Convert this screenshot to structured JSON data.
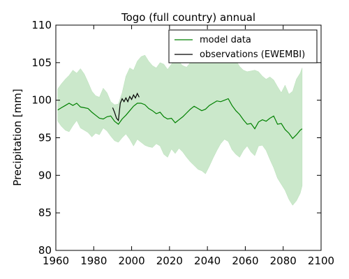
{
  "chart_data": {
    "type": "line",
    "title": "Togo (full country) annual",
    "xlabel": "",
    "ylabel": "Precipitation [mm]",
    "xlim": [
      1960,
      2100
    ],
    "ylim": [
      80,
      110
    ],
    "xticks": [
      1960,
      1980,
      2000,
      2020,
      2040,
      2060,
      2080,
      2100
    ],
    "yticks": [
      80,
      85,
      90,
      95,
      100,
      105,
      110
    ],
    "xtick_labels": [
      "1960",
      "1980",
      "2000",
      "2020",
      "2040",
      "2060",
      "2080",
      "2100"
    ],
    "ytick_labels": [
      "80",
      "85",
      "90",
      "95",
      "100",
      "105",
      "110"
    ],
    "grid": false,
    "legend_position": "top-right",
    "colors": {
      "model": "#008000",
      "band": "#a8d8a8",
      "observations": "#000000"
    },
    "series": [
      {
        "name": "model data",
        "x": [
          1961,
          1963,
          1965,
          1967,
          1969,
          1971,
          1973,
          1975,
          1977,
          1979,
          1981,
          1983,
          1985,
          1987,
          1989,
          1991,
          1993,
          1995,
          1997,
          1999,
          2001,
          2003,
          2005,
          2007,
          2009,
          2011,
          2013,
          2015,
          2017,
          2019,
          2021,
          2023,
          2025,
          2027,
          2029,
          2031,
          2033,
          2035,
          2037,
          2039,
          2041,
          2043,
          2045,
          2047,
          2049,
          2051,
          2053,
          2055,
          2057,
          2059,
          2061,
          2063,
          2065,
          2067,
          2069,
          2071,
          2073,
          2075,
          2077,
          2079,
          2081,
          2083,
          2085,
          2087,
          2089,
          2090
        ],
        "values": [
          98.7,
          99.0,
          99.3,
          99.6,
          99.3,
          99.6,
          99.1,
          99.0,
          98.9,
          98.4,
          98.0,
          97.6,
          97.5,
          97.8,
          97.9,
          97.2,
          96.8,
          97.5,
          98.0,
          98.6,
          99.2,
          99.6,
          99.6,
          99.4,
          98.9,
          98.6,
          98.2,
          98.4,
          97.8,
          97.5,
          97.6,
          97.0,
          97.4,
          97.8,
          98.3,
          98.8,
          99.2,
          98.9,
          98.6,
          98.8,
          99.3,
          99.6,
          99.9,
          99.8,
          100.0,
          100.2,
          99.3,
          98.6,
          98.1,
          97.4,
          96.8,
          96.9,
          96.2,
          97.1,
          97.4,
          97.2,
          97.6,
          97.9,
          96.8,
          96.9,
          96.1,
          95.6,
          94.9,
          95.4,
          96.0,
          96.2
        ]
      },
      {
        "name": "observations (EWEMBI)",
        "x": [
          1990,
          1991,
          1992,
          1993,
          1994,
          1995,
          1996,
          1997,
          1998,
          1999,
          2000,
          2001,
          2002,
          2003,
          2004
        ],
        "values": [
          99.0,
          98.4,
          97.6,
          97.3,
          99.6,
          100.2,
          99.8,
          100.3,
          99.8,
          100.5,
          100.1,
          100.7,
          100.3,
          100.9,
          100.4
        ]
      }
    ],
    "band": {
      "x": [
        1961,
        1963,
        1965,
        1967,
        1969,
        1971,
        1973,
        1975,
        1977,
        1979,
        1981,
        1983,
        1985,
        1987,
        1989,
        1991,
        1993,
        1995,
        1997,
        1999,
        2001,
        2003,
        2005,
        2007,
        2009,
        2011,
        2013,
        2015,
        2017,
        2019,
        2021,
        2023,
        2025,
        2027,
        2029,
        2031,
        2033,
        2035,
        2037,
        2039,
        2041,
        2043,
        2045,
        2047,
        2049,
        2051,
        2053,
        2055,
        2057,
        2059,
        2061,
        2063,
        2065,
        2067,
        2069,
        2071,
        2073,
        2075,
        2077,
        2079,
        2081,
        2083,
        2085,
        2087,
        2089,
        2090
      ],
      "upper": [
        101.5,
        102.2,
        102.8,
        103.3,
        104.0,
        103.6,
        104.2,
        103.5,
        102.4,
        101.2,
        100.6,
        100.4,
        101.6,
        101.0,
        99.8,
        99.4,
        99.5,
        101.0,
        103.2,
        104.3,
        104.0,
        105.2,
        105.8,
        106.0,
        105.2,
        104.6,
        104.3,
        105.0,
        104.8,
        104.1,
        104.8,
        105.6,
        105.1,
        104.6,
        104.4,
        105.0,
        105.3,
        105.2,
        105.4,
        106.3,
        107.8,
        108.6,
        108.3,
        107.6,
        107.2,
        106.8,
        106.2,
        105.3,
        104.5,
        104.0,
        103.8,
        103.9,
        104.0,
        103.8,
        103.2,
        102.8,
        103.1,
        102.7,
        101.8,
        101.0,
        102.0,
        100.8,
        101.2,
        102.8,
        103.6,
        104.3
      ],
      "lower": [
        97.2,
        96.5,
        96.0,
        95.8,
        96.6,
        97.3,
        96.3,
        96.0,
        95.7,
        95.1,
        95.6,
        95.4,
        96.3,
        95.9,
        95.2,
        94.6,
        94.4,
        95.0,
        95.5,
        94.8,
        93.9,
        94.8,
        94.4,
        94.0,
        93.8,
        93.7,
        94.2,
        93.9,
        92.8,
        92.4,
        93.5,
        92.9,
        93.6,
        93.1,
        92.4,
        91.8,
        91.3,
        90.8,
        90.6,
        90.2,
        91.2,
        92.3,
        93.3,
        94.2,
        94.8,
        94.5,
        93.4,
        92.8,
        92.4,
        93.3,
        93.9,
        93.1,
        92.6,
        93.9,
        94.0,
        93.3,
        92.1,
        91.0,
        89.6,
        88.8,
        88.0,
        86.8,
        86.0,
        86.6,
        87.6,
        88.6
      ]
    }
  }
}
